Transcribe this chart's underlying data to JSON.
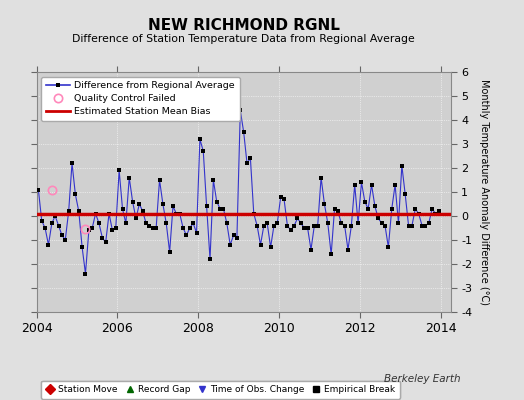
{
  "title": "NEW RICHMOND RGNL",
  "subtitle": "Difference of Station Temperature Data from Regional Average",
  "ylabel": "Monthly Temperature Anomaly Difference (°C)",
  "xlim": [
    2004.0,
    2014.25
  ],
  "ylim": [
    -4,
    6
  ],
  "yticks": [
    -4,
    -3,
    -2,
    -1,
    0,
    1,
    2,
    3,
    4,
    5,
    6
  ],
  "xticks": [
    2004,
    2006,
    2008,
    2010,
    2012,
    2014
  ],
  "bias_value": 0.1,
  "background_color": "#e0e0e0",
  "plot_bg_color": "#d0d0d0",
  "line_color": "#3333cc",
  "bias_color": "#cc0000",
  "watermark": "Berkeley Earth",
  "time_series": [
    2004.042,
    2004.125,
    2004.208,
    2004.292,
    2004.375,
    2004.458,
    2004.542,
    2004.625,
    2004.708,
    2004.792,
    2004.875,
    2004.958,
    2005.042,
    2005.125,
    2005.208,
    2005.292,
    2005.375,
    2005.458,
    2005.542,
    2005.625,
    2005.708,
    2005.792,
    2005.875,
    2005.958,
    2006.042,
    2006.125,
    2006.208,
    2006.292,
    2006.375,
    2006.458,
    2006.542,
    2006.625,
    2006.708,
    2006.792,
    2006.875,
    2006.958,
    2007.042,
    2007.125,
    2007.208,
    2007.292,
    2007.375,
    2007.458,
    2007.542,
    2007.625,
    2007.708,
    2007.792,
    2007.875,
    2007.958,
    2008.042,
    2008.125,
    2008.208,
    2008.292,
    2008.375,
    2008.458,
    2008.542,
    2008.625,
    2008.708,
    2008.792,
    2008.875,
    2008.958,
    2009.042,
    2009.125,
    2009.208,
    2009.292,
    2009.375,
    2009.458,
    2009.542,
    2009.625,
    2009.708,
    2009.792,
    2009.875,
    2009.958,
    2010.042,
    2010.125,
    2010.208,
    2010.292,
    2010.375,
    2010.458,
    2010.542,
    2010.625,
    2010.708,
    2010.792,
    2010.875,
    2010.958,
    2011.042,
    2011.125,
    2011.208,
    2011.292,
    2011.375,
    2011.458,
    2011.542,
    2011.625,
    2011.708,
    2011.792,
    2011.875,
    2011.958,
    2012.042,
    2012.125,
    2012.208,
    2012.292,
    2012.375,
    2012.458,
    2012.542,
    2012.625,
    2012.708,
    2012.792,
    2012.875,
    2012.958,
    2013.042,
    2013.125,
    2013.208,
    2013.292,
    2013.375,
    2013.458,
    2013.542,
    2013.625,
    2013.708,
    2013.792,
    2013.875,
    2013.958
  ],
  "values": [
    1.1,
    -0.2,
    -0.5,
    -1.2,
    -0.3,
    0.0,
    -0.4,
    -0.8,
    -1.0,
    0.2,
    2.2,
    0.9,
    0.2,
    -1.3,
    -2.4,
    -0.6,
    -0.5,
    0.1,
    -0.3,
    -0.9,
    -1.1,
    0.1,
    -0.6,
    -0.5,
    1.9,
    0.3,
    -0.3,
    1.6,
    0.6,
    -0.1,
    0.5,
    0.2,
    -0.3,
    -0.4,
    -0.5,
    -0.5,
    1.5,
    0.5,
    -0.3,
    -1.5,
    0.4,
    0.1,
    0.1,
    -0.5,
    -0.8,
    -0.5,
    -0.3,
    -0.7,
    3.2,
    2.7,
    0.4,
    -1.8,
    1.5,
    0.6,
    0.3,
    0.3,
    -0.3,
    -1.2,
    -0.8,
    -0.9,
    4.4,
    3.5,
    2.2,
    2.4,
    0.1,
    -0.4,
    -1.2,
    -0.4,
    -0.3,
    -1.3,
    -0.4,
    -0.3,
    0.8,
    0.7,
    -0.4,
    -0.6,
    -0.4,
    -0.1,
    -0.3,
    -0.5,
    -0.5,
    -1.4,
    -0.4,
    -0.4,
    1.6,
    0.5,
    -0.3,
    -1.6,
    0.3,
    0.2,
    -0.3,
    -0.4,
    -1.4,
    -0.4,
    1.3,
    -0.3,
    1.4,
    0.6,
    0.3,
    1.3,
    0.4,
    -0.1,
    -0.3,
    -0.4,
    -1.3,
    0.3,
    1.3,
    -0.3,
    2.1,
    0.9,
    -0.4,
    -0.4,
    0.3,
    0.1,
    -0.4,
    -0.4,
    -0.3,
    0.3,
    0.1,
    0.2
  ],
  "qc_failed_x": [
    2004.375
  ],
  "qc_failed_y": [
    1.1
  ],
  "qc_failed2_x": [
    2005.208
  ],
  "qc_failed2_y": [
    -0.55
  ]
}
